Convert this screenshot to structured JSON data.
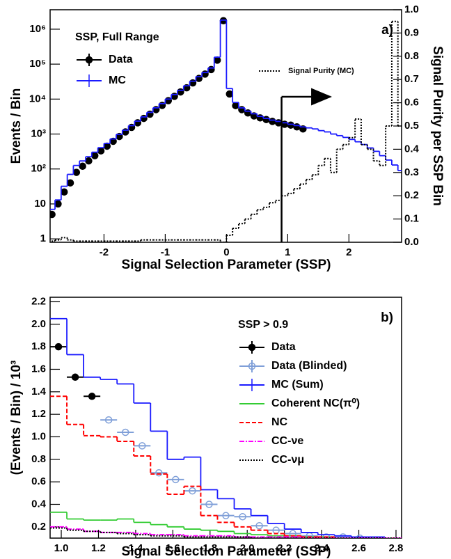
{
  "chart_data": [
    {
      "type": "histogram",
      "x_label": "Signal Selection Parameter (SSP)",
      "y_label": "Events / Bin",
      "y2_label": "Signal Purity per SSP Bin",
      "panel_label": "a)",
      "legend_title": "SSP, Full Range",
      "legend": "upper left",
      "log_y": true,
      "xlim": [
        -2.88,
        2.86
      ],
      "ylim": [
        0.8,
        3600000
      ],
      "y2lim": [
        0,
        1
      ],
      "xticks": [
        -2,
        -1,
        0,
        1,
        2
      ],
      "yticks": [
        1,
        10,
        {
          "value": 100,
          "label": "10²"
        },
        {
          "value": 1000,
          "label": "10³"
        },
        {
          "value": 10000,
          "label": "10⁴"
        },
        {
          "value": 100000,
          "label": "10⁵"
        },
        {
          "value": 1000000,
          "label": "10⁶"
        }
      ],
      "y2ticks": [
        {
          "value": 0,
          "label": "0.0"
        },
        0.1,
        0.2,
        0.3,
        0.4,
        0.5,
        0.6,
        0.7,
        0.8,
        0.9,
        {
          "value": 1,
          "label": "1.0"
        }
      ],
      "cut": 0.9,
      "bins": [
        -2.9,
        -2.8,
        -2.7,
        -2.6,
        -2.5,
        -2.4,
        -2.3,
        -2.2,
        -2.1,
        -2.0,
        -1.9,
        -1.8,
        -1.7,
        -1.6,
        -1.5,
        -1.4,
        -1.3,
        -1.2,
        -1.1,
        -1.0,
        -0.9,
        -0.8,
        -0.7,
        -0.6,
        -0.5,
        -0.4,
        -0.3,
        -0.2,
        -0.1,
        0,
        0.1,
        0.2,
        0.3,
        0.4,
        0.5,
        0.6,
        0.7,
        0.8,
        0.9,
        1.0,
        1.1,
        1.2,
        1.3,
        1.4,
        1.5,
        1.6,
        1.7,
        1.8,
        1.9,
        2.0,
        2.1,
        2.2,
        2.3,
        2.4,
        2.5,
        2.6,
        2.7,
        2.8,
        2.9
      ],
      "series": [
        {
          "name": "Data",
          "style": "points",
          "marker": "filled",
          "color": "#000000",
          "values": [
            5,
            10,
            22,
            40,
            80,
            120,
            170,
            240,
            330,
            450,
            620,
            850,
            1150,
            1550,
            2100,
            2800,
            3700,
            5000,
            6600,
            9000,
            12000,
            16000,
            21000,
            29000,
            39000,
            52000,
            70000,
            130000,
            1750000,
            14000,
            6500,
            5000,
            4000,
            3300,
            2900,
            2600,
            2300,
            2100,
            1900,
            1800,
            1600,
            1400,
            null,
            null,
            null,
            null,
            null,
            null,
            null,
            null,
            null,
            null,
            null,
            null,
            null,
            null,
            null,
            null
          ]
        },
        {
          "name": "MC",
          "style": "step",
          "line_style": "solid",
          "color": "#1a1aff",
          "values": [
            7,
            13,
            32,
            70,
            126,
            170,
            224,
            302,
            407,
            537,
            724,
            977,
            1290,
            1740,
            2340,
            3090,
            4170,
            5620,
            7410,
            10000,
            13500,
            17800,
            24000,
            32400,
            43700,
            57500,
            77600,
            158000,
            1820000,
            20000,
            8000,
            5600,
            4500,
            3800,
            3200,
            2800,
            2500,
            2300,
            2100,
            1900,
            1750,
            1600,
            1500,
            1400,
            1250,
            1150,
            1000,
            900,
            800,
            700,
            600,
            500,
            400,
            320,
            240,
            180,
            130,
            90
          ]
        },
        {
          "name": "Signal Purity (MC)",
          "style": "step",
          "line_style": "dotted",
          "color": "#000000",
          "axis": "y2",
          "values": [
            0.005,
            0.01,
            0.02,
            0.01,
            0.005,
            0.005,
            0.005,
            0.005,
            0.005,
            0.005,
            0.005,
            0.005,
            0.005,
            0.005,
            0.005,
            0.01,
            0.01,
            0.01,
            0.01,
            0.01,
            0.01,
            0.01,
            0.01,
            0.01,
            0.01,
            0.01,
            0.01,
            0.01,
            0.0,
            0.03,
            0.06,
            0.08,
            0.1,
            0.12,
            0.14,
            0.15,
            0.17,
            0.18,
            0.2,
            0.21,
            0.23,
            0.25,
            0.27,
            0.29,
            0.33,
            0.36,
            0.3,
            0.4,
            0.42,
            0.45,
            0.53,
            0.42,
            0.4,
            0.35,
            0.33,
            0.5,
            0.95,
            0.5
          ]
        }
      ]
    },
    {
      "type": "histogram",
      "x_label": "Signal Selection Parameter (SSP)",
      "y_label": "(Events / Bin) / 10³",
      "panel_label": "b)",
      "legend_title": "SSP > 0.9",
      "legend": "upper right",
      "log_y": false,
      "xlim": [
        0.94,
        2.83
      ],
      "ylim": [
        0.1,
        2.24
      ],
      "xticks": [
        {
          "value": 1,
          "label": "1.0"
        },
        1.2,
        1.4,
        1.6,
        1.8,
        {
          "value": 2,
          "label": "2.0"
        },
        2.2,
        2.4,
        2.6,
        2.8
      ],
      "yticks": [
        0.2,
        0.4,
        0.6,
        0.8,
        {
          "value": 1,
          "label": "1.0"
        },
        1.2,
        1.4,
        1.6,
        1.8,
        {
          "value": 2,
          "label": "2.0"
        },
        2.2
      ],
      "bins": [
        0.94,
        1.03,
        1.12,
        1.21,
        1.3,
        1.39,
        1.48,
        1.57,
        1.66,
        1.75,
        1.84,
        1.93,
        2.02,
        2.11,
        2.2,
        2.29,
        2.38,
        2.47,
        2.56,
        2.65,
        2.74,
        2.83
      ],
      "series": [
        {
          "name": "Data",
          "style": "points",
          "marker": "filled",
          "color": "#000000",
          "values": [
            1.8,
            1.53,
            1.36,
            null,
            null,
            null,
            null,
            null,
            null,
            null,
            null,
            null,
            null,
            null,
            null,
            null,
            null,
            null,
            null,
            null,
            null
          ]
        },
        {
          "name": "Data (Blinded)",
          "style": "points",
          "marker": "open",
          "color": "#7f9fd8",
          "values": [
            null,
            null,
            null,
            1.15,
            1.04,
            0.92,
            0.68,
            0.62,
            0.52,
            0.4,
            0.3,
            0.29,
            0.21,
            0.17,
            0.14,
            0.12,
            0.11,
            0.11,
            0.1,
            null,
            null
          ]
        },
        {
          "name": "MC (Sum)",
          "style": "step",
          "line_style": "solid",
          "color": "#1a1aff",
          "values": [
            2.05,
            1.73,
            1.53,
            1.51,
            1.47,
            1.3,
            1.05,
            0.8,
            0.82,
            0.53,
            0.45,
            0.36,
            0.3,
            0.23,
            0.18,
            0.15,
            0.13,
            0.12,
            0.11,
            0.11,
            0.1
          ]
        },
        {
          "name": "Coherent NC(π⁰)",
          "style": "step",
          "line_style": "solid",
          "color": "#33cc33",
          "values": [
            0.33,
            0.27,
            0.26,
            0.26,
            0.27,
            0.24,
            0.22,
            0.2,
            0.18,
            0.17,
            0.16,
            0.14,
            0.13,
            0.12,
            0.12,
            0.11,
            0.11,
            0.1,
            0.1,
            0.1,
            0.1
          ]
        },
        {
          "name": "NC",
          "style": "step",
          "line_style": "dashed",
          "color": "#ff0000",
          "values": [
            1.36,
            1.11,
            1.01,
            1.0,
            0.96,
            0.83,
            0.67,
            0.49,
            0.56,
            0.3,
            0.24,
            0.2,
            0.17,
            0.14,
            0.12,
            0.11,
            0.11,
            0.1,
            0.1,
            0.1,
            0.1
          ]
        },
        {
          "name": "CC-νe",
          "style": "step",
          "line_style": "dashdot",
          "color": "#ff00ff",
          "values": [
            0.2,
            0.18,
            0.16,
            0.15,
            0.15,
            0.14,
            0.13,
            0.13,
            0.12,
            0.12,
            0.12,
            0.11,
            0.11,
            0.11,
            0.11,
            0.1,
            0.1,
            0.1,
            0.1,
            0.1,
            0.1
          ]
        },
        {
          "name": "CC-νμ",
          "style": "step",
          "line_style": "dotted",
          "color": "#000000",
          "values": [
            0.19,
            0.17,
            0.16,
            0.15,
            0.14,
            0.13,
            0.12,
            0.12,
            0.11,
            0.11,
            0.11,
            0.11,
            0.1,
            0.1,
            0.1,
            0.1,
            0.1,
            0.1,
            0.1,
            0.1,
            0.1
          ]
        }
      ]
    }
  ]
}
